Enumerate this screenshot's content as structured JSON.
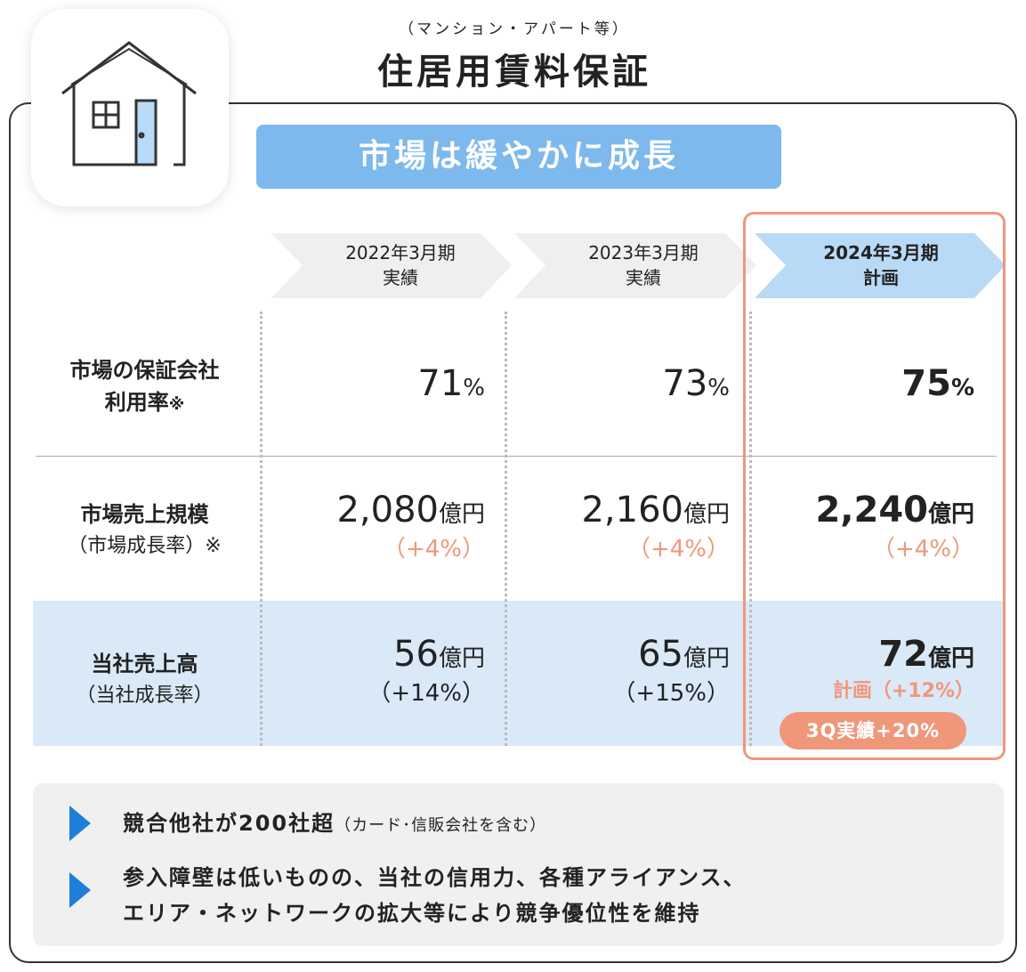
{
  "header": {
    "subtitle": "（マンション・アパート等）",
    "title": "住居用賃料保証"
  },
  "banner": "市場は緩やかに成長",
  "columns": [
    {
      "period": "2022年3月期",
      "kind": "実績"
    },
    {
      "period": "2023年3月期",
      "kind": "実績"
    },
    {
      "period": "2024年3月期",
      "kind": "計画"
    }
  ],
  "rows": [
    {
      "label": [
        "市場の保証会社",
        "利用率"
      ],
      "label_mark": "※",
      "cells": [
        {
          "value": "71",
          "unit": "%"
        },
        {
          "value": "73",
          "unit": "%"
        },
        {
          "value": "75",
          "unit": "%"
        }
      ]
    },
    {
      "label": [
        "市場売上規模"
      ],
      "sub": "（市場成長率）※",
      "cells": [
        {
          "value": "2,080",
          "unit": "億円",
          "growth": "（+4%）"
        },
        {
          "value": "2,160",
          "unit": "億円",
          "growth": "（+4%）"
        },
        {
          "value": "2,240",
          "unit": "億円",
          "growth": "（+4%）"
        }
      ]
    },
    {
      "label": [
        "当社売上高"
      ],
      "sub": "（当社成長率）",
      "cells": [
        {
          "value": "56",
          "unit": "億円",
          "growth": "（+14%）"
        },
        {
          "value": "65",
          "unit": "億円",
          "growth": "（+15%）"
        },
        {
          "value": "72",
          "unit": "億円",
          "growth_prefix": "計画",
          "growth": "（+12%）",
          "badge": "3Q実績+20%"
        }
      ]
    }
  ],
  "notes": [
    {
      "text": "競合他社が200社超",
      "aside": "（カード･信販会社を含む）"
    },
    {
      "lines": [
        "参入障壁は低いものの、当社の信用力、各種アライアンス、",
        "エリア・ネットワークの拡大等により競争優位性を維持"
      ]
    }
  ]
}
